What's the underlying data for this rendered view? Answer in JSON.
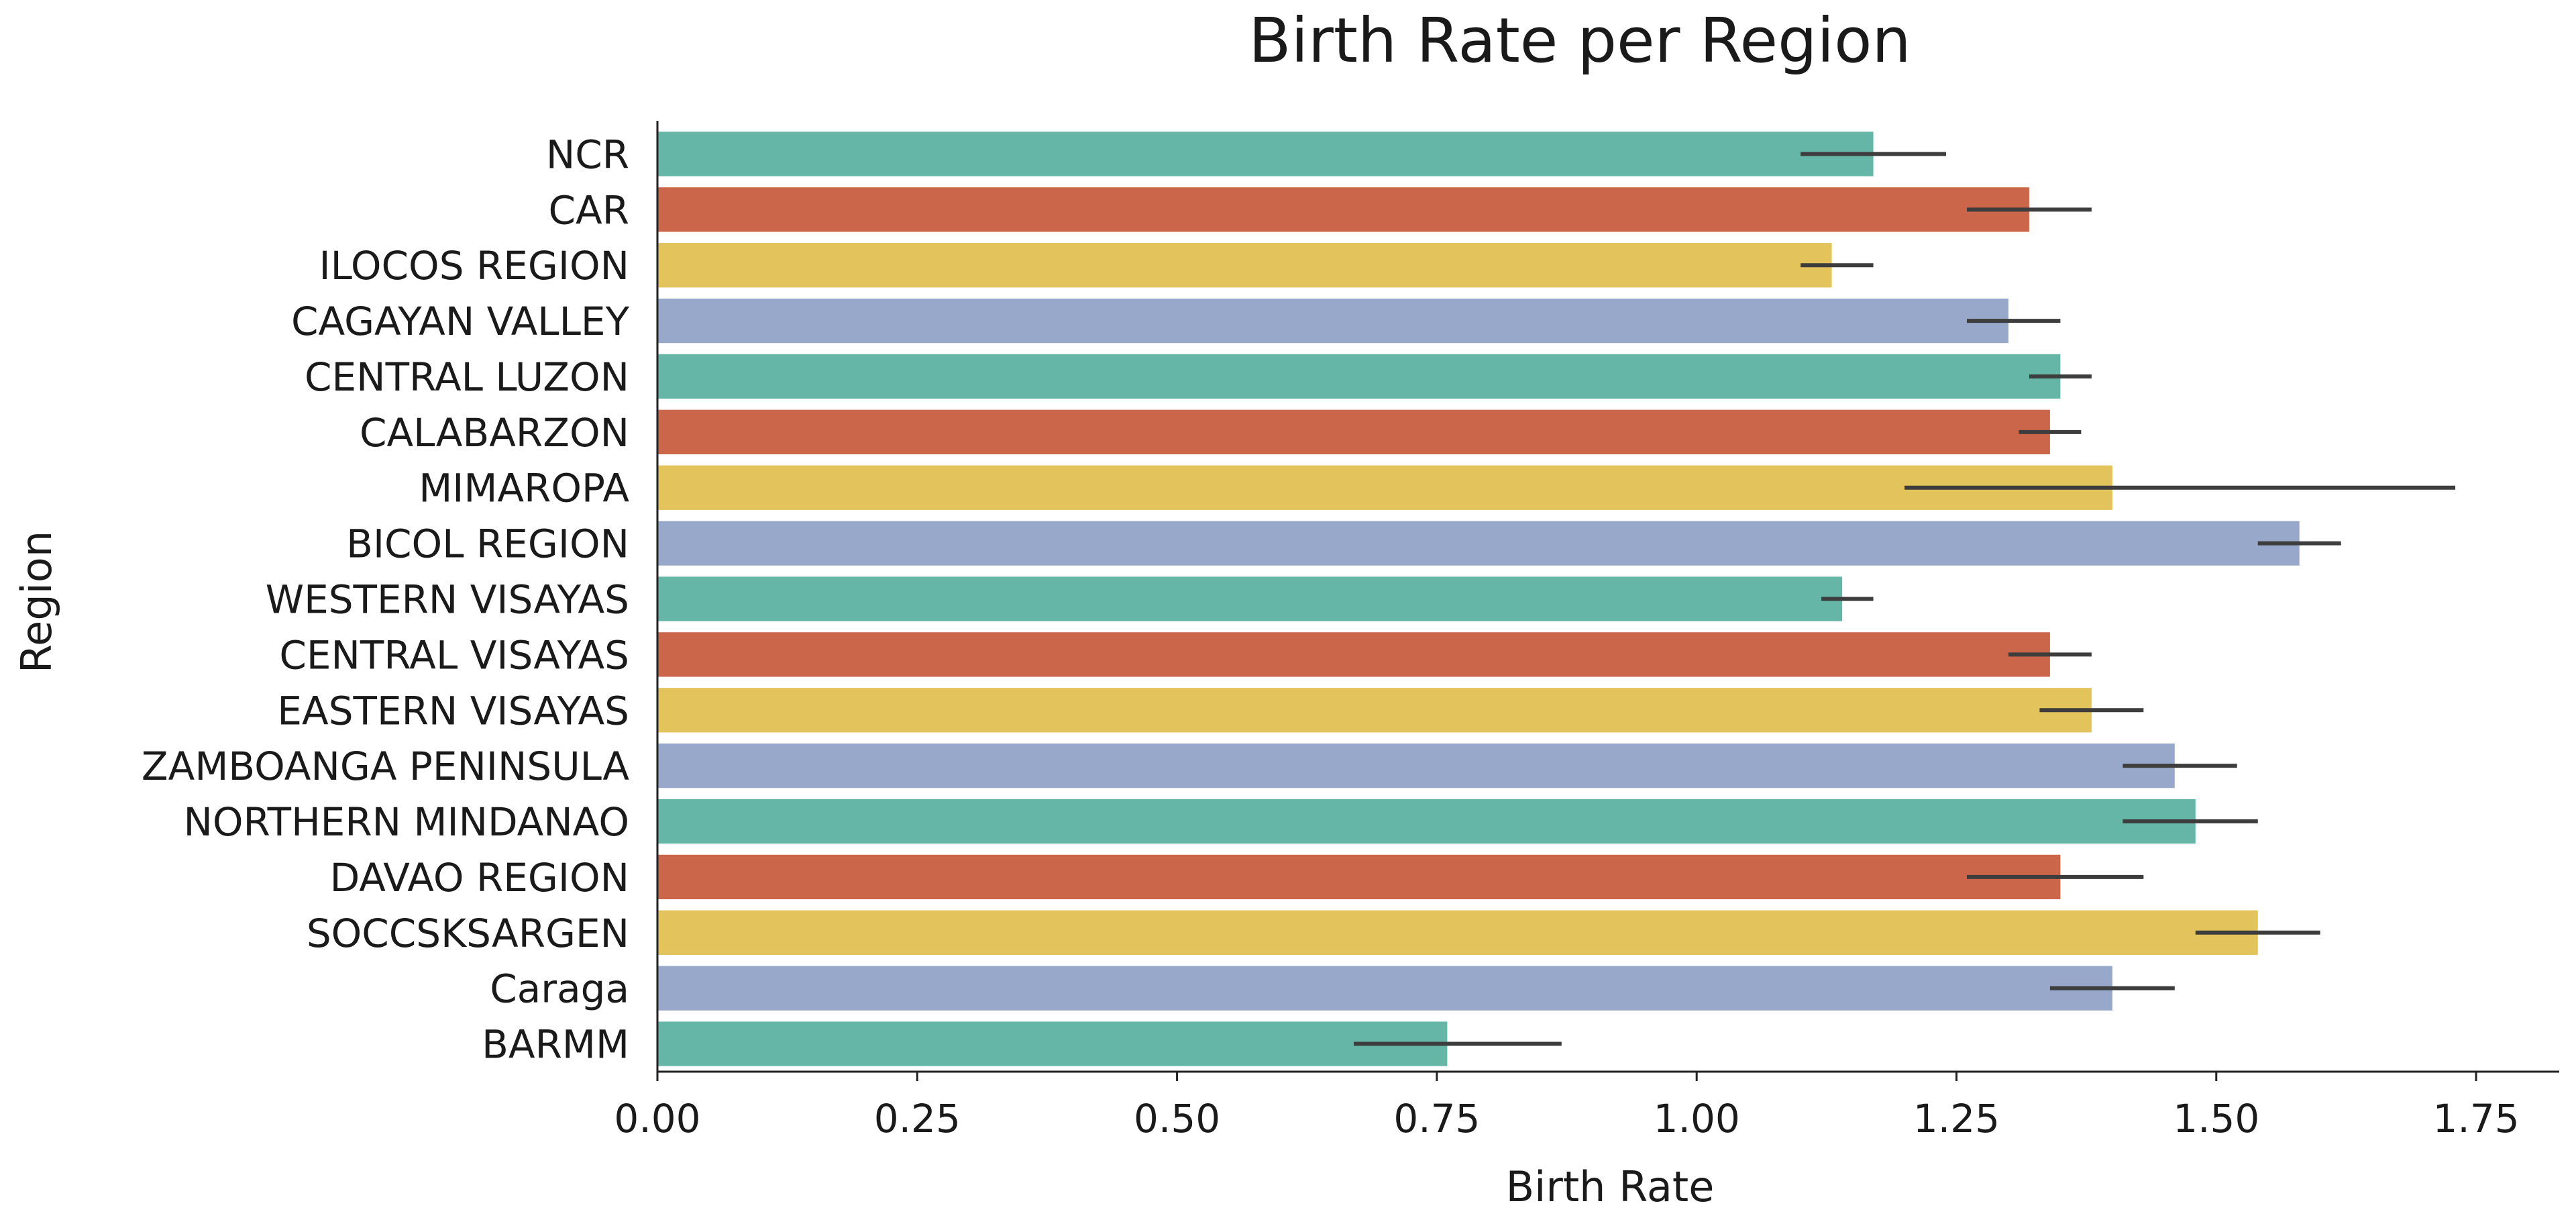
{
  "chart_data": {
    "type": "bar",
    "orientation": "horizontal",
    "title": "Birth Rate per Region",
    "xlabel": "Birth Rate",
    "ylabel": "Region",
    "xlim": [
      0,
      1.83
    ],
    "xticks": [
      0.0,
      0.25,
      0.5,
      0.75,
      1.0,
      1.25,
      1.5,
      1.75
    ],
    "xtick_labels": [
      "0.00",
      "0.25",
      "0.50",
      "0.75",
      "1.00",
      "1.25",
      "1.50",
      "1.75"
    ],
    "grid": false,
    "colors": [
      "#66b6a8",
      "#cb664b",
      "#e2c35c",
      "#97a8cb"
    ],
    "categories": [
      "NCR",
      "CAR",
      "ILOCOS REGION",
      "CAGAYAN VALLEY",
      "CENTRAL LUZON",
      "CALABARZON",
      "MIMAROPA",
      "BICOL REGION",
      "WESTERN VISAYAS",
      "CENTRAL VISAYAS",
      "EASTERN VISAYAS",
      "ZAMBOANGA PENINSULA",
      "NORTHERN MINDANAO",
      "DAVAO REGION",
      "SOCCSKSARGEN",
      "Caraga",
      "BARMM"
    ],
    "values": [
      1.17,
      1.32,
      1.13,
      1.3,
      1.35,
      1.34,
      1.4,
      1.58,
      1.14,
      1.34,
      1.38,
      1.46,
      1.48,
      1.35,
      1.54,
      1.4,
      0.76
    ],
    "error_low": [
      1.1,
      1.26,
      1.1,
      1.26,
      1.32,
      1.31,
      1.2,
      1.54,
      1.12,
      1.3,
      1.33,
      1.41,
      1.41,
      1.26,
      1.48,
      1.34,
      0.67
    ],
    "error_high": [
      1.24,
      1.38,
      1.17,
      1.35,
      1.38,
      1.37,
      1.73,
      1.62,
      1.17,
      1.38,
      1.43,
      1.52,
      1.54,
      1.43,
      1.6,
      1.46,
      0.87
    ]
  }
}
